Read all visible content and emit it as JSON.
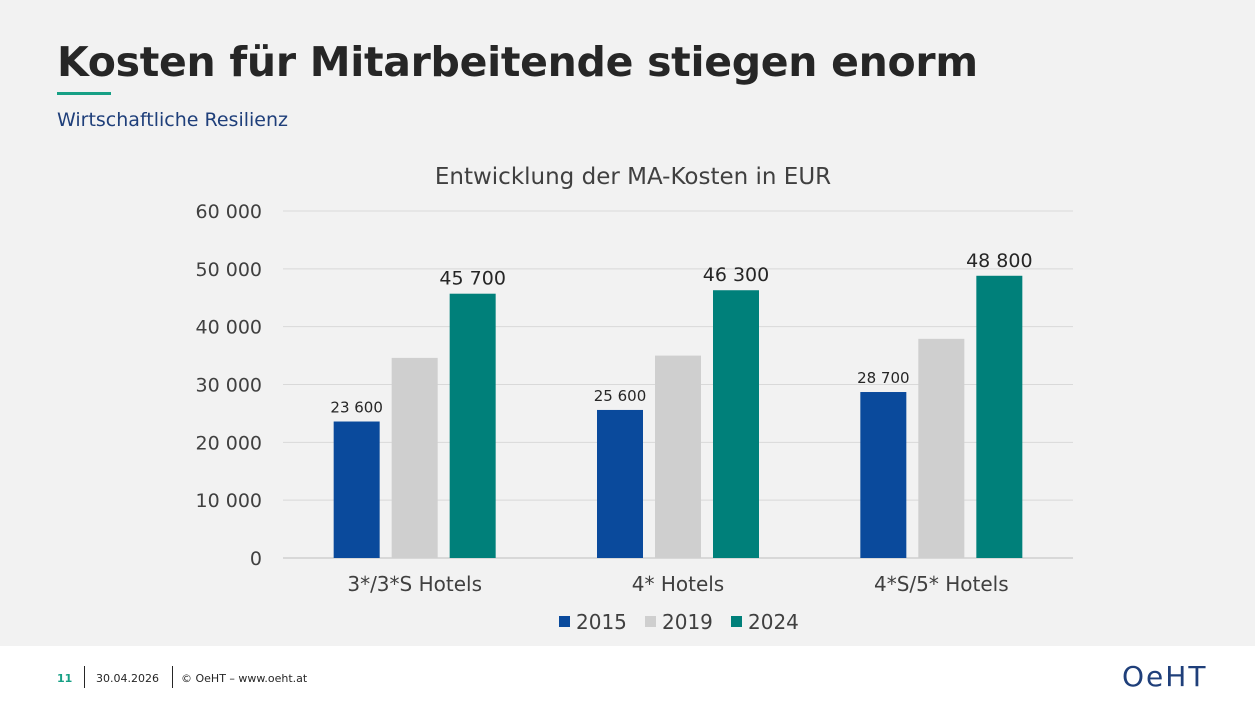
{
  "slide": {
    "title": "Kosten für Mitarbeitende stiegen enorm",
    "subtitle": "Wirtschaftliche Resilienz"
  },
  "footer": {
    "page_number": "11",
    "date": "30.04.2026",
    "copyright": "© OeHT – www.oeht.at",
    "logo": "OeHT"
  },
  "colors": {
    "s2015": "#0a4a9c",
    "s2019": "#cfcfcf",
    "s2024": "#00807a"
  },
  "chart_data": {
    "type": "bar",
    "title": "Entwicklung der MA-Kosten in EUR",
    "categories": [
      "3*/3*S Hotels",
      "4* Hotels",
      "4*S/5* Hotels"
    ],
    "series": [
      {
        "name": "2015",
        "values": [
          23600,
          25600,
          28700
        ],
        "labels": [
          "23 600",
          "25 600",
          "28 700"
        ]
      },
      {
        "name": "2019",
        "values": [
          34600,
          35000,
          37900
        ],
        "labels": []
      },
      {
        "name": "2024",
        "values": [
          45700,
          46300,
          48800
        ],
        "labels": [
          "45 700",
          "46 300",
          "48 800"
        ]
      }
    ],
    "yticks": [
      "0",
      "10 000",
      "20 000",
      "30 000",
      "40 000",
      "50 000",
      "60 000"
    ],
    "ylim": [
      0,
      60000
    ],
    "grid": true,
    "legend": "bottom"
  }
}
